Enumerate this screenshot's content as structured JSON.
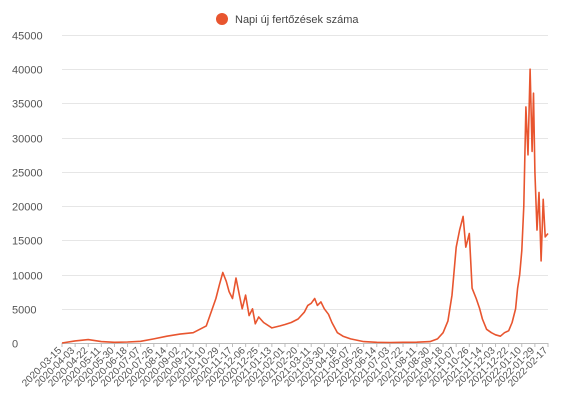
{
  "chart_data": {
    "type": "line",
    "legend": {
      "label": "Napi új fertőzések száma",
      "position": "top-center"
    },
    "color": "#e8552f",
    "grid": true,
    "ylim": [
      0,
      45000
    ],
    "y_ticks": [
      0,
      5000,
      10000,
      15000,
      20000,
      25000,
      30000,
      35000,
      40000,
      45000
    ],
    "x_ticks": [
      "2020-03-15",
      "2020-04-03",
      "2020-04-22",
      "2020-05-11",
      "2020-05-30",
      "2020-06-18",
      "2020-07-07",
      "2020-07-26",
      "2020-08-14",
      "2020-09-02",
      "2020-09-21",
      "2020-10-10",
      "2020-10-29",
      "2020-11-17",
      "2020-12-06",
      "2020-12-25",
      "2021-01-13",
      "2021-02-01",
      "2021-02-20",
      "2021-03-11",
      "2021-03-30",
      "2021-04-18",
      "2021-05-07",
      "2021-05-26",
      "2021-06-14",
      "2021-07-03",
      "2021-07-22",
      "2021-08-11",
      "2021-08-30",
      "2021-09-18",
      "2021-10-07",
      "2021-10-26",
      "2021-11-14",
      "2021-12-03",
      "2021-12-22",
      "2022-01-10",
      "2022-01-29",
      "2022-02-17"
    ],
    "series": [
      {
        "x": [
          "2020-03-15",
          "2020-04-03",
          "2020-04-22",
          "2020-05-11",
          "2020-05-30",
          "2020-06-18",
          "2020-07-07",
          "2020-07-26",
          "2020-08-14",
          "2020-09-02",
          "2020-09-21",
          "2020-10-10",
          "2020-10-24",
          "2020-10-29",
          "2020-11-03",
          "2020-11-08",
          "2020-11-12",
          "2020-11-17",
          "2020-11-22",
          "2020-11-27",
          "2020-12-01",
          "2020-12-06",
          "2020-12-11",
          "2020-12-16",
          "2020-12-20",
          "2020-12-25",
          "2021-01-01",
          "2021-01-13",
          "2021-01-25",
          "2021-02-01",
          "2021-02-10",
          "2021-02-20",
          "2021-03-01",
          "2021-03-06",
          "2021-03-11",
          "2021-03-16",
          "2021-03-20",
          "2021-03-25",
          "2021-03-30",
          "2021-04-05",
          "2021-04-10",
          "2021-04-18",
          "2021-04-26",
          "2021-05-07",
          "2021-05-26",
          "2021-06-14",
          "2021-07-03",
          "2021-07-22",
          "2021-08-11",
          "2021-08-30",
          "2021-09-10",
          "2021-09-18",
          "2021-09-25",
          "2021-10-01",
          "2021-10-07",
          "2021-10-12",
          "2021-10-17",
          "2021-10-21",
          "2021-10-26",
          "2021-10-30",
          "2021-11-05",
          "2021-11-10",
          "2021-11-14",
          "2021-11-20",
          "2021-11-27",
          "2021-12-03",
          "2021-12-10",
          "2021-12-16",
          "2021-12-22",
          "2021-12-27",
          "2022-01-01",
          "2022-01-04",
          "2022-01-07",
          "2022-01-10",
          "2022-01-13",
          "2022-01-16",
          "2022-01-19",
          "2022-01-22",
          "2022-01-25",
          "2022-01-27",
          "2022-01-29",
          "2022-02-01",
          "2022-02-04",
          "2022-02-07",
          "2022-02-10",
          "2022-02-13",
          "2022-02-17"
        ],
        "values": [
          0,
          300,
          500,
          200,
          100,
          150,
          250,
          600,
          1000,
          1300,
          1500,
          2500,
          6500,
          8500,
          10300,
          9000,
          7500,
          6500,
          9500,
          7000,
          5000,
          7000,
          4000,
          5000,
          2800,
          3800,
          3000,
          2200,
          2500,
          2700,
          3000,
          3500,
          4500,
          5500,
          5800,
          6500,
          5500,
          6000,
          5000,
          4200,
          3000,
          1500,
          1000,
          600,
          200,
          100,
          80,
          100,
          120,
          200,
          600,
          1500,
          3200,
          7000,
          14000,
          16500,
          18500,
          14000,
          16000,
          8000,
          6500,
          5000,
          3500,
          2000,
          1500,
          1200,
          1000,
          1500,
          1800,
          3000,
          5000,
          8000,
          10000,
          13500,
          20000,
          34500,
          27500,
          40000,
          28000,
          36500,
          25000,
          16500,
          22000,
          12000,
          21000,
          15500,
          16000
        ]
      }
    ]
  }
}
